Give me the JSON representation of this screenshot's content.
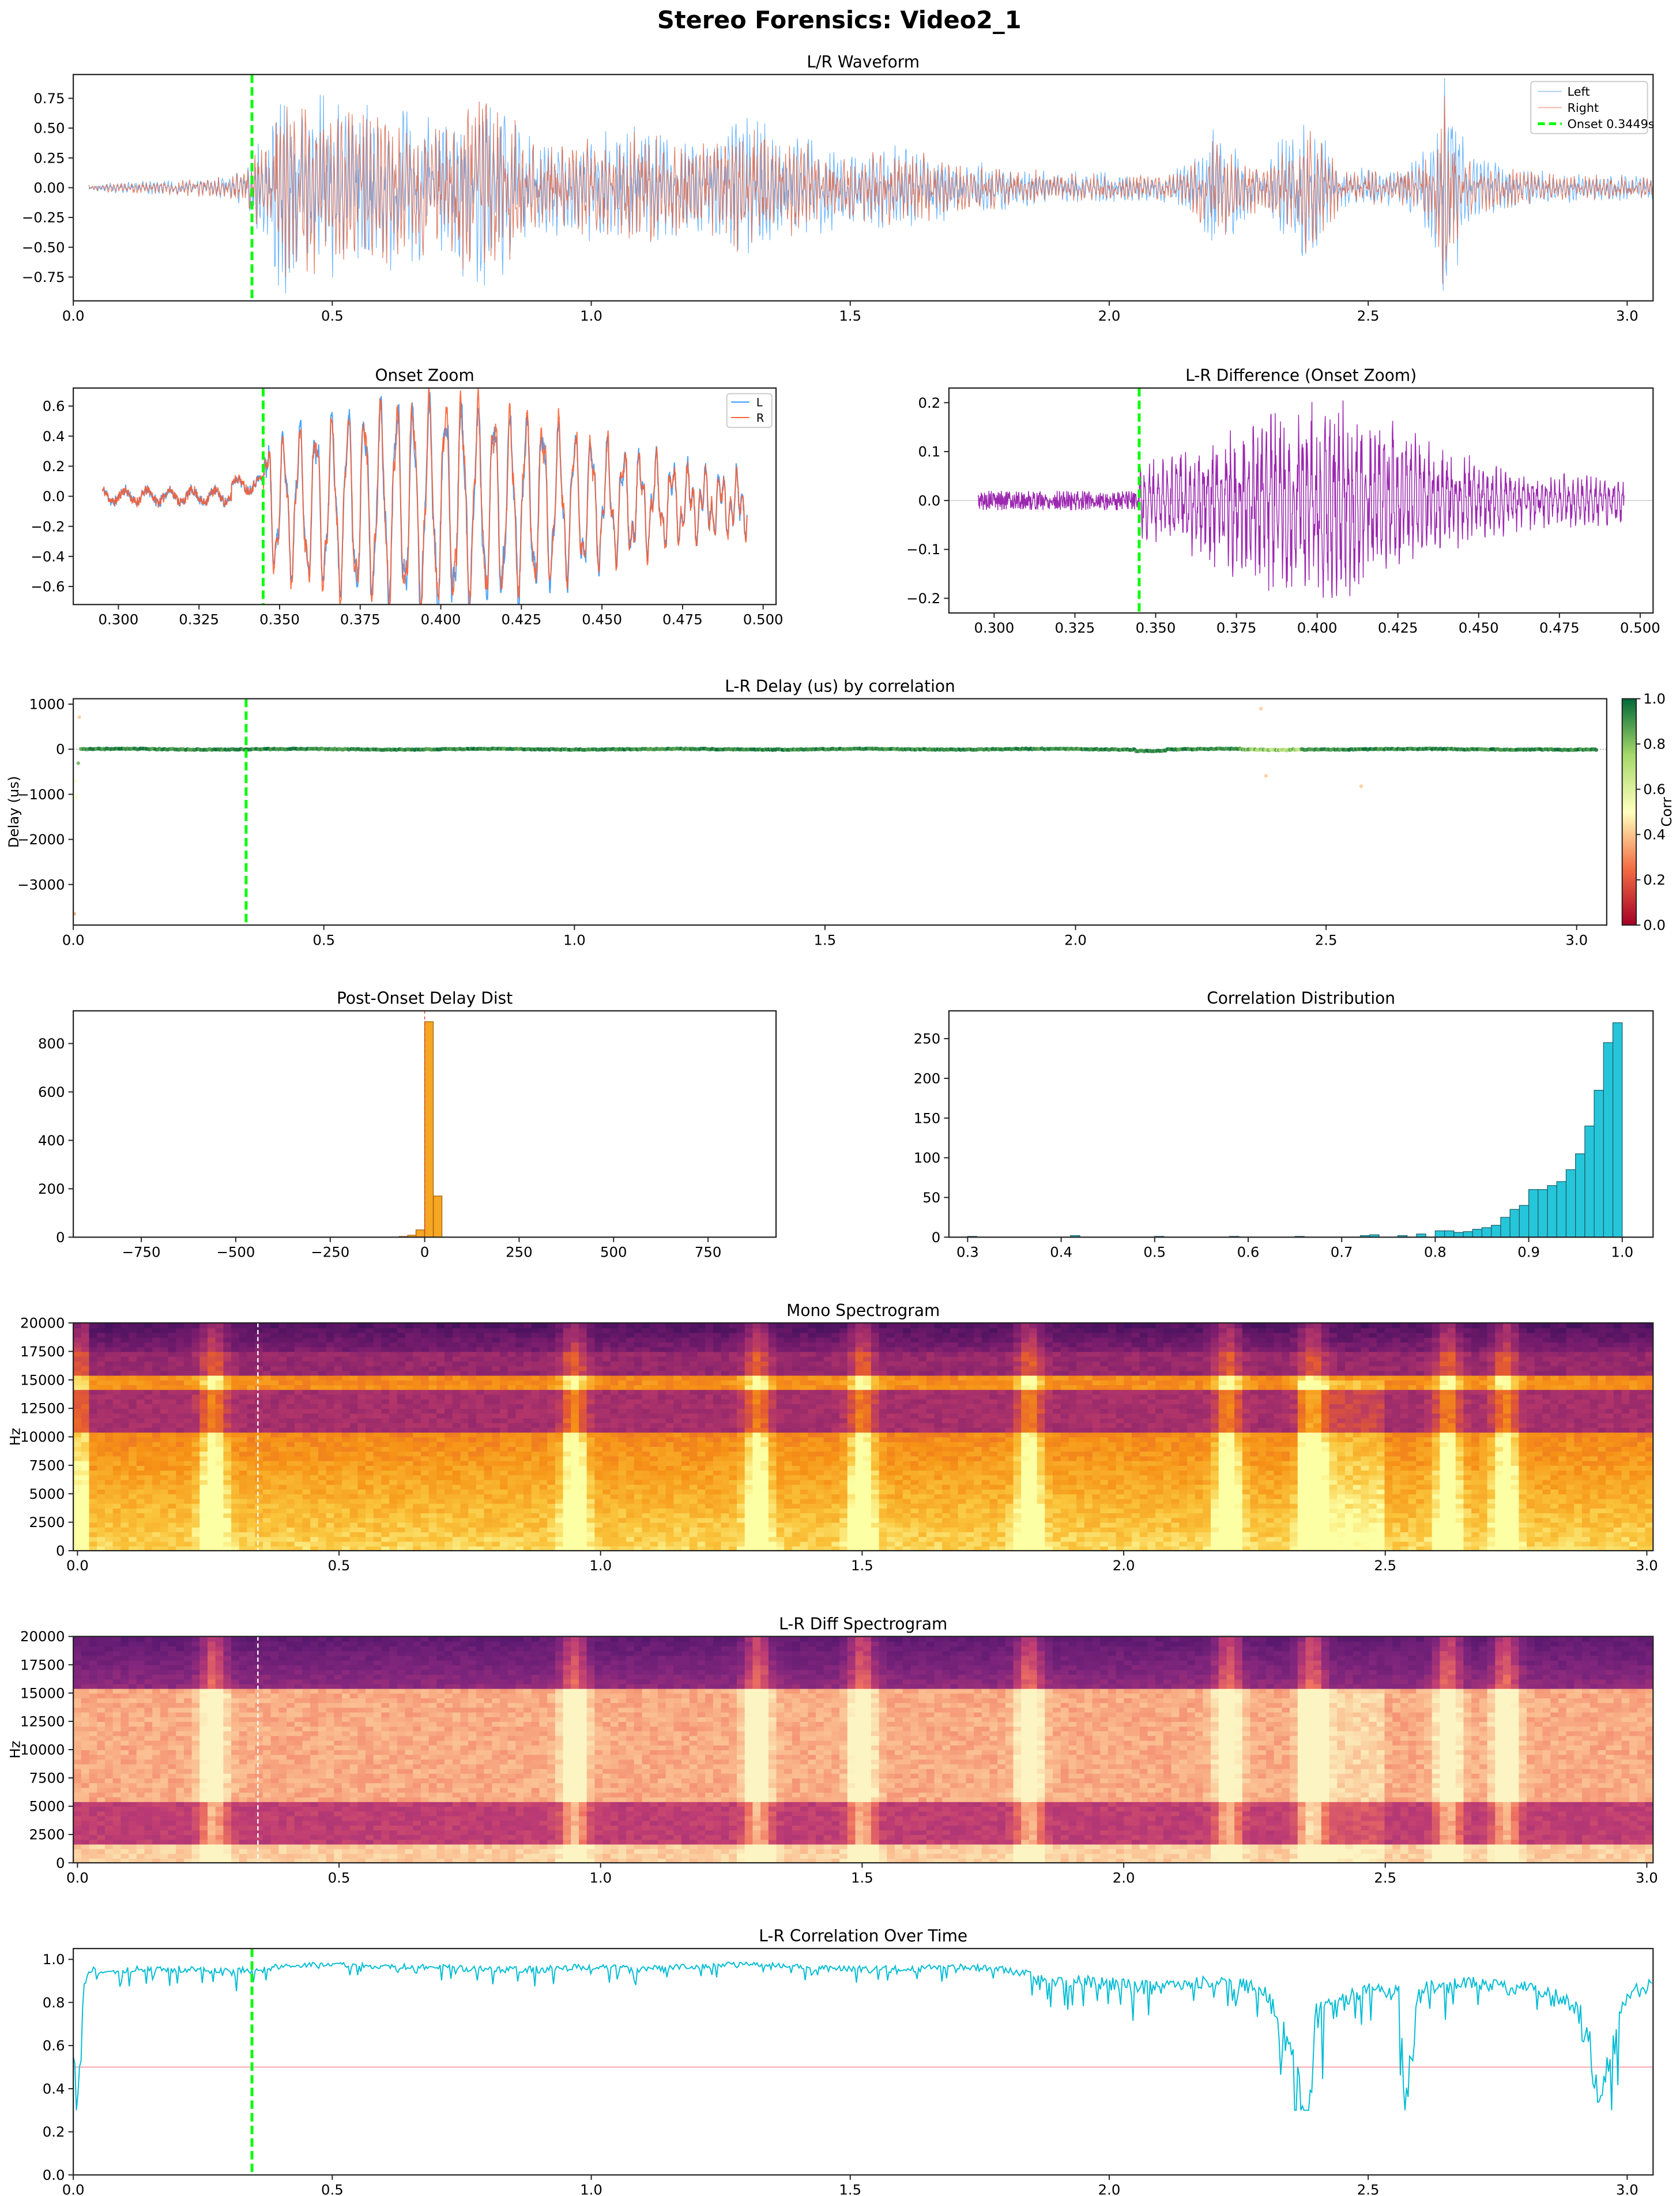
{
  "figure": {
    "title": "Stereo Forensics: Video2_1"
  },
  "colors": {
    "left": "#4da6ff",
    "right": "#d9684f",
    "onset": "#00ff00",
    "diff": "#9c27b0",
    "delay_hist": "#f5a623",
    "corr_hist": "#26c6da",
    "corr_line": "#00bcd4",
    "threshold": "#ffb6c1"
  },
  "onset_s": 0.3449,
  "chart_data": [
    {
      "id": "waveform",
      "type": "line",
      "title": "L/R Waveform",
      "xlim": [
        0,
        3.05
      ],
      "ylim": [
        -0.95,
        0.95
      ],
      "xticks": [
        "0.0",
        "0.5",
        "1.0",
        "1.5",
        "2.0",
        "2.5",
        "3.0"
      ],
      "yticks": [
        "-0.75",
        "-0.50",
        "-0.25",
        "0.00",
        "0.25",
        "0.50",
        "0.75"
      ],
      "legend": {
        "placement": "top-right",
        "entries": [
          "Left",
          "Right",
          "Onset 0.3449s"
        ]
      },
      "envelope_t": [
        0.03,
        0.1,
        0.2,
        0.3,
        0.34,
        0.4,
        0.5,
        0.6,
        0.7,
        0.8,
        0.9,
        1.0,
        1.1,
        1.2,
        1.3,
        1.4,
        1.5,
        1.6,
        1.7,
        1.8,
        1.9,
        2.0,
        2.1,
        2.15,
        2.2,
        2.3,
        2.38,
        2.45,
        2.55,
        2.6,
        2.65,
        2.7,
        2.8,
        2.9,
        3.05
      ],
      "series": [
        {
          "name": "Left",
          "envelope": [
            0.02,
            0.04,
            0.05,
            0.08,
            0.15,
            0.72,
            0.62,
            0.55,
            0.5,
            0.72,
            0.3,
            0.35,
            0.45,
            0.3,
            0.5,
            0.35,
            0.25,
            0.3,
            0.2,
            0.15,
            0.12,
            0.1,
            0.1,
            0.15,
            0.42,
            0.15,
            0.6,
            0.15,
            0.12,
            0.2,
            0.85,
            0.2,
            0.12,
            0.1,
            0.08
          ]
        },
        {
          "name": "Right",
          "envelope": [
            0.02,
            0.04,
            0.05,
            0.08,
            0.14,
            0.62,
            0.55,
            0.5,
            0.45,
            0.65,
            0.28,
            0.33,
            0.42,
            0.28,
            0.47,
            0.32,
            0.23,
            0.27,
            0.18,
            0.13,
            0.11,
            0.09,
            0.09,
            0.13,
            0.38,
            0.13,
            0.5,
            0.13,
            0.11,
            0.18,
            0.7,
            0.18,
            0.11,
            0.09,
            0.07
          ]
        }
      ]
    },
    {
      "id": "onset-zoom",
      "type": "line",
      "title": "Onset Zoom",
      "xlim": [
        0.286,
        0.504
      ],
      "ylim": [
        -0.72,
        0.72
      ],
      "xticks": [
        "0.300",
        "0.325",
        "0.350",
        "0.375",
        "0.400",
        "0.425",
        "0.450",
        "0.475",
        "0.500"
      ],
      "yticks": [
        "-0.6",
        "-0.4",
        "-0.2",
        "0.0",
        "0.2",
        "0.4",
        "0.6"
      ],
      "legend": {
        "placement": "top-right",
        "entries": [
          "L",
          "R"
        ]
      },
      "x_range": [
        0.295,
        0.495
      ]
    },
    {
      "id": "lr-diff",
      "type": "line",
      "title": "L-R Difference (Onset Zoom)",
      "xlim": [
        0.286,
        0.504
      ],
      "ylim": [
        -0.23,
        0.23
      ],
      "xticks": [
        "0.300",
        "0.325",
        "0.350",
        "0.375",
        "0.400",
        "0.425",
        "0.450",
        "0.475",
        "0.500"
      ],
      "yticks": [
        "-0.2",
        "-0.1",
        "0.0",
        "0.1",
        "0.2"
      ],
      "x_range": [
        0.295,
        0.495
      ]
    },
    {
      "id": "delay",
      "type": "scatter",
      "title": "L-R Delay (us) by correlation",
      "ylabel": "Delay (us)",
      "xlim": [
        0,
        3.06
      ],
      "ylim": [
        -3900,
        1120
      ],
      "xticks": [
        "0.0",
        "0.5",
        "1.0",
        "1.5",
        "2.0",
        "2.5",
        "3.0"
      ],
      "yticks": [
        "-3000",
        "-2000",
        "-1000",
        "0",
        "1000"
      ],
      "colorbar": {
        "label": "Corr",
        "range": [
          0,
          1
        ],
        "ticks": [
          "0.0",
          "0.2",
          "0.4",
          "0.6",
          "0.8",
          "1.0"
        ],
        "colormap": "RdYlGn"
      },
      "outliers": [
        {
          "t": 0.002,
          "d": -3650,
          "c": 0.35
        },
        {
          "t": 0.004,
          "d": -710,
          "c": 0.5
        },
        {
          "t": 0.006,
          "d": -1060,
          "c": 0.5
        },
        {
          "t": 0.01,
          "d": -310,
          "c": 0.85
        },
        {
          "t": 0.012,
          "d": 710,
          "c": 0.4
        },
        {
          "t": 2.37,
          "d": 900,
          "c": 0.4
        },
        {
          "t": 2.38,
          "d": -590,
          "c": 0.4
        },
        {
          "t": 2.57,
          "d": -820,
          "c": 0.4
        }
      ]
    },
    {
      "id": "delay-hist",
      "type": "bar",
      "title": "Post-Onset Delay Dist",
      "xlim": [
        -930,
        930
      ],
      "ylim": [
        0,
        935
      ],
      "xticks": [
        "-750",
        "-500",
        "-250",
        "0",
        "250",
        "500",
        "750"
      ],
      "yticks": [
        "0",
        "200",
        "400",
        "600",
        "800"
      ],
      "bin_width": 22.7,
      "bins": [
        -68,
        -45,
        -23,
        0,
        23
      ],
      "values": [
        3,
        8,
        30,
        890,
        170
      ]
    },
    {
      "id": "corr-hist",
      "type": "bar",
      "title": "Correlation Distribution",
      "xlim": [
        0.28,
        1.033
      ],
      "ylim": [
        0,
        285
      ],
      "xticks": [
        "0.3",
        "0.4",
        "0.5",
        "0.6",
        "0.7",
        "0.8",
        "0.9",
        "1.0"
      ],
      "yticks": [
        "0",
        "50",
        "100",
        "150",
        "200",
        "250"
      ],
      "bin_width": 0.01,
      "bins": [
        0.3,
        0.41,
        0.5,
        0.58,
        0.65,
        0.72,
        0.73,
        0.76,
        0.78,
        0.8,
        0.81,
        0.82,
        0.83,
        0.84,
        0.85,
        0.86,
        0.87,
        0.88,
        0.89,
        0.9,
        0.91,
        0.92,
        0.93,
        0.94,
        0.95,
        0.96,
        0.97,
        0.98,
        0.99
      ],
      "values": [
        1,
        2,
        1,
        1,
        1,
        2,
        3,
        2,
        4,
        8,
        8,
        6,
        7,
        10,
        12,
        15,
        25,
        35,
        40,
        60,
        60,
        65,
        70,
        85,
        105,
        140,
        185,
        245,
        270
      ]
    },
    {
      "id": "mono-spec",
      "type": "heatmap",
      "title": "Mono Spectrogram",
      "ylabel": "Hz",
      "xlim": [
        -0.008,
        3.012
      ],
      "ylim": [
        0,
        20000
      ],
      "xticks": [
        "0.0",
        "0.5",
        "1.0",
        "1.5",
        "2.0",
        "2.5",
        "3.0"
      ],
      "yticks": [
        "0",
        "2500",
        "5000",
        "7500",
        "10000",
        "12500",
        "15000",
        "17500",
        "20000"
      ],
      "colormap": "inferno"
    },
    {
      "id": "diff-spec",
      "type": "heatmap",
      "title": "L-R Diff Spectrogram",
      "ylabel": "Hz",
      "xlim": [
        -0.008,
        3.012
      ],
      "ylim": [
        0,
        20000
      ],
      "xticks": [
        "0.0",
        "0.5",
        "1.0",
        "1.5",
        "2.0",
        "2.5",
        "3.0"
      ],
      "yticks": [
        "0",
        "2500",
        "5000",
        "7500",
        "10000",
        "12500",
        "15000",
        "17500",
        "20000"
      ],
      "colormap": "magma"
    },
    {
      "id": "corr-time",
      "type": "line",
      "title": "L-R Correlation Over Time",
      "xlim": [
        0,
        3.05
      ],
      "ylim": [
        0,
        1.05
      ],
      "threshold": 0.5,
      "xticks": [
        "0.0",
        "0.5",
        "1.0",
        "1.5",
        "2.0",
        "2.5",
        "3.0"
      ],
      "yticks": [
        "0.0",
        "0.2",
        "0.4",
        "0.6",
        "0.8",
        "1.0"
      ],
      "t": [
        0.0,
        0.01,
        0.02,
        0.03,
        0.05,
        0.1,
        0.2,
        0.3,
        0.4,
        0.5,
        0.6,
        0.7,
        0.8,
        0.9,
        1.0,
        1.1,
        1.2,
        1.3,
        1.4,
        1.5,
        1.6,
        1.7,
        1.8,
        1.9,
        2.0,
        2.1,
        2.2,
        2.3,
        2.35,
        2.38,
        2.4,
        2.5,
        2.56,
        2.57,
        2.6,
        2.7,
        2.8,
        2.9,
        2.95,
        3.0,
        3.05
      ],
      "values": [
        0.6,
        0.45,
        0.9,
        0.97,
        0.96,
        0.97,
        0.97,
        0.96,
        0.98,
        0.99,
        0.98,
        0.98,
        0.97,
        0.97,
        0.98,
        0.97,
        0.98,
        0.99,
        0.98,
        0.97,
        0.97,
        0.98,
        0.97,
        0.93,
        0.92,
        0.9,
        0.93,
        0.9,
        0.7,
        0.32,
        0.8,
        0.9,
        0.88,
        0.48,
        0.9,
        0.92,
        0.9,
        0.85,
        0.55,
        0.88,
        0.92
      ]
    }
  ]
}
